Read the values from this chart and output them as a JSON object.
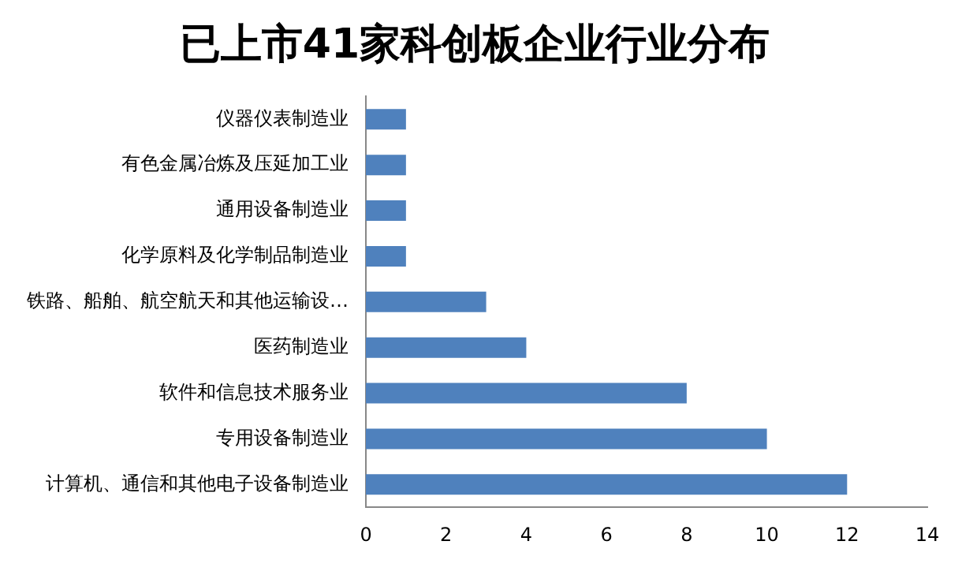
{
  "chart_data": {
    "type": "bar",
    "orientation": "horizontal",
    "title": "已上市41家科创板企业行业分布",
    "categories": [
      "仪器仪表制造业",
      "有色金属冶炼及压延加工业",
      "通用设备制造业",
      "化学原料及化学制品制造业",
      "铁路、船舶、航空航天和其他运输设…",
      "医药制造业",
      "软件和信息技术服务业",
      "专用设备制造业",
      "计算机、通信和其他电子设备制造业"
    ],
    "values": [
      1,
      1,
      1,
      1,
      3,
      4,
      8,
      10,
      12
    ],
    "color": "#4f81bd",
    "xlim": [
      0,
      14
    ],
    "xticks": [
      0,
      2,
      4,
      6,
      8,
      10,
      12,
      14
    ],
    "grid": false,
    "legend": false
  }
}
